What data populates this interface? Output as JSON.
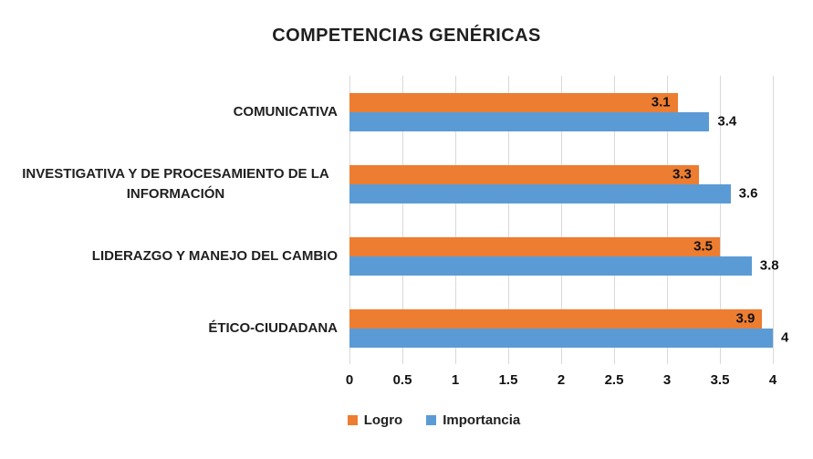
{
  "chart_data": {
    "type": "bar",
    "orientation": "horizontal",
    "title": "COMPETENCIAS GENÉRICAS",
    "categories": [
      "COMUNICATIVA",
      "INVESTIGATIVA Y DE PROCESAMIENTO DE LA INFORMACIÓN",
      "LIDERAZGO Y MANEJO DEL CAMBIO",
      "ÉTICO-CIUDADANA"
    ],
    "series": [
      {
        "name": "Logro",
        "color": "#ED7D31",
        "values": [
          3.1,
          3.3,
          3.5,
          3.9
        ],
        "value_label_position": "inside-end"
      },
      {
        "name": "Importancia",
        "color": "#5B9BD5",
        "values": [
          3.4,
          3.6,
          3.8,
          4
        ],
        "value_label_position": "outside-end"
      }
    ],
    "xlim": [
      0,
      4
    ],
    "x_ticks": [
      0,
      0.5,
      1,
      1.5,
      2,
      2.5,
      3,
      3.5,
      4
    ],
    "grid": true,
    "gridline_color": "#D9D9D9",
    "legend_position": "bottom",
    "background_color": "#FFFFFF",
    "text_color": "#1F1F1F"
  }
}
